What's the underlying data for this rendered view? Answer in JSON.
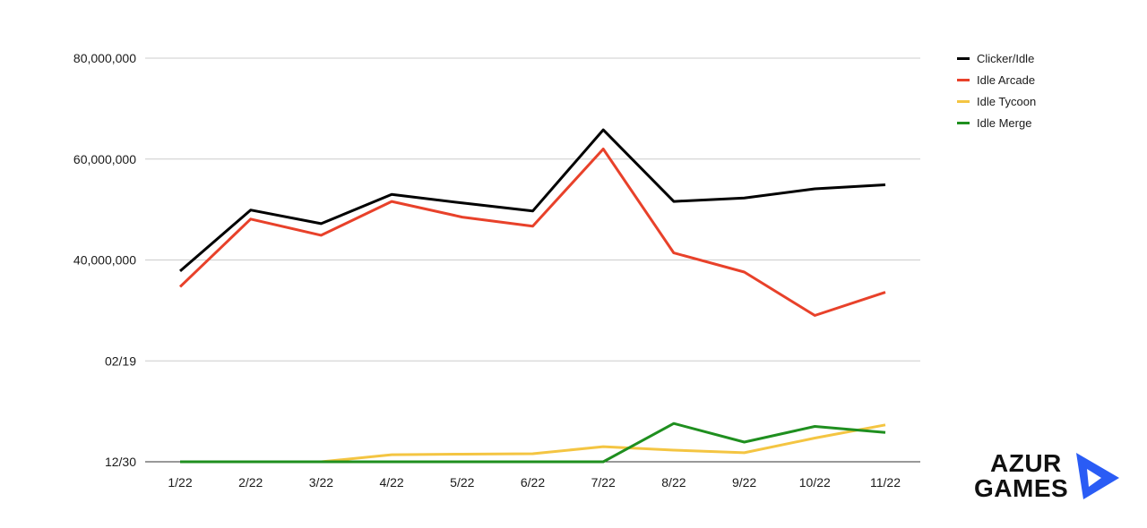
{
  "chart_data": {
    "type": "line",
    "categories": [
      "1/22",
      "2/22",
      "3/22",
      "4/22",
      "5/22",
      "6/22",
      "7/22",
      "8/22",
      "9/22",
      "10/22",
      "11/22"
    ],
    "y_tick_labels": [
      "12/30",
      "02/19",
      "40,000,000",
      "60,000,000",
      "80,000,000"
    ],
    "ylim": [
      0,
      80000000
    ],
    "grid": true,
    "legend_position": "top-right",
    "series": [
      {
        "name": "Clicker/Idle",
        "color": "#000000",
        "values": [
          37800000,
          49900000,
          47200000,
          53000000,
          51300000,
          49700000,
          65800000,
          51600000,
          52300000,
          54100000,
          54900000
        ]
      },
      {
        "name": "Idle Arcade",
        "color": "#e8412a",
        "values": [
          34700000,
          48100000,
          44900000,
          51600000,
          48500000,
          46700000,
          62000000,
          41400000,
          37600000,
          29000000,
          33600000
        ]
      },
      {
        "name": "Idle Tycoon",
        "color": "#f4c542",
        "values": [
          0,
          0,
          0,
          1400000,
          1500000,
          1600000,
          3000000,
          2300000,
          1800000,
          4700000,
          7300000
        ]
      },
      {
        "name": "Idle Merge",
        "color": "#1f8f1f",
        "values": [
          0,
          0,
          0,
          0,
          0,
          0,
          0,
          7600000,
          3900000,
          7000000,
          5800000
        ]
      }
    ]
  },
  "logo": {
    "line1": "AZUR",
    "line2": "GAMES",
    "mark_color": "#2a5cf5"
  }
}
